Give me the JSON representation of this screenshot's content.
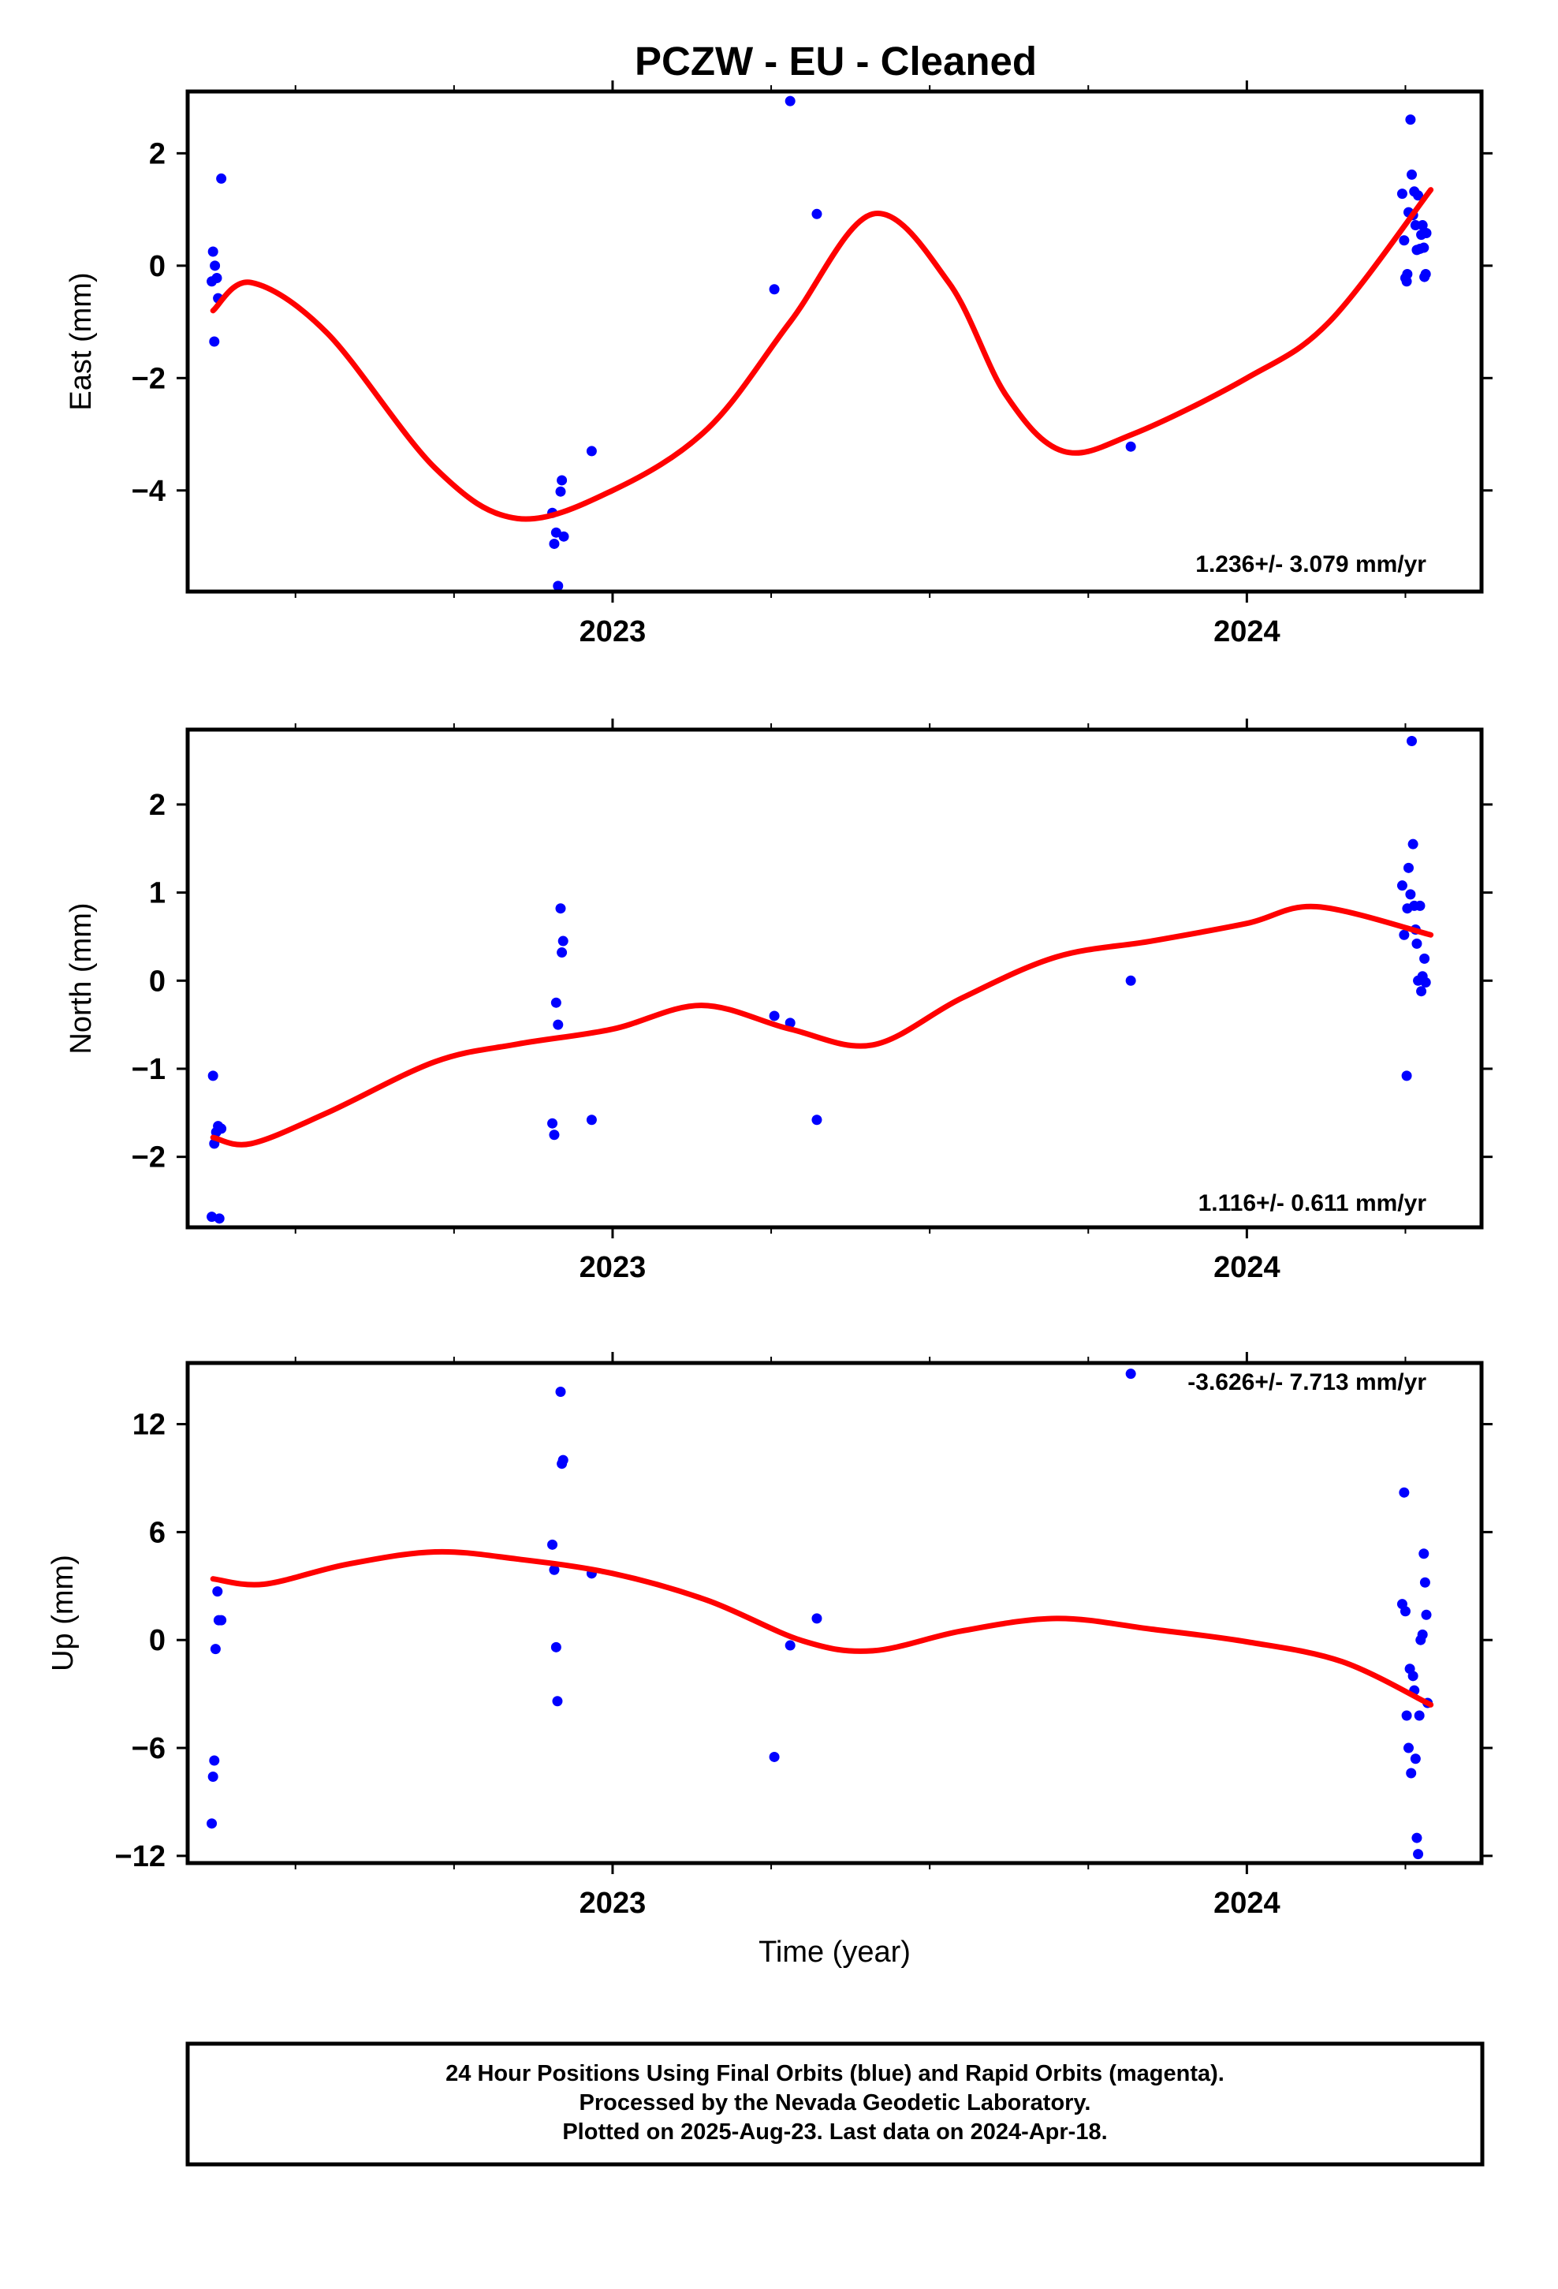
{
  "title": "PCZW  - EU - Cleaned",
  "colors": {
    "final_orbits": "#0000ff",
    "model_fit": "#ff0000",
    "axes": "#000000"
  },
  "chart_data": [
    {
      "type": "scatter",
      "panel": "east",
      "ylabel": "East (mm)",
      "xlabel": "",
      "xlim": [
        2022.33,
        2024.37
      ],
      "ylim": [
        -5.8,
        3.1
      ],
      "xticks": [
        2023,
        2024
      ],
      "yticks": [
        2,
        0,
        -2,
        -4
      ],
      "ytick_labels": [
        "2",
        "0",
        "−2",
        "−4"
      ],
      "rate_text": "1.236+/- 3.079 mm/yr",
      "series": [
        {
          "points": [
            [
              2022.37,
              0.25
            ],
            [
              2022.373,
              0.0
            ],
            [
              2022.376,
              -0.22
            ],
            [
              2022.368,
              -0.28
            ],
            [
              2022.378,
              -0.58
            ],
            [
              2022.372,
              -1.35
            ],
            [
              2022.383,
              1.55
            ],
            [
              2022.905,
              -4.4
            ],
            [
              2022.908,
              -4.95
            ],
            [
              2022.911,
              -4.75
            ],
            [
              2022.914,
              -5.7
            ],
            [
              2022.918,
              -4.02
            ],
            [
              2022.92,
              -3.82
            ],
            [
              2022.923,
              -4.82
            ],
            [
              2022.967,
              -3.3
            ],
            [
              2023.255,
              -0.42
            ],
            [
              2023.28,
              2.93
            ],
            [
              2023.322,
              0.92
            ],
            [
              2023.817,
              -3.22
            ],
            [
              2024.245,
              1.28
            ],
            [
              2024.248,
              0.45
            ],
            [
              2024.25,
              -0.22
            ],
            [
              2024.252,
              -0.28
            ],
            [
              2024.253,
              -0.15
            ],
            [
              2024.255,
              0.95
            ],
            [
              2024.258,
              2.6
            ],
            [
              2024.26,
              1.62
            ],
            [
              2024.262,
              0.9
            ],
            [
              2024.264,
              1.32
            ],
            [
              2024.266,
              0.72
            ],
            [
              2024.268,
              0.28
            ],
            [
              2024.27,
              1.25
            ],
            [
              2024.273,
              0.3
            ],
            [
              2024.275,
              0.55
            ],
            [
              2024.277,
              0.72
            ],
            [
              2024.28,
              -0.2
            ],
            [
              2024.282,
              -0.15
            ],
            [
              2024.283,
              0.58
            ],
            [
              2024.279,
              0.32
            ]
          ]
        }
      ],
      "fit_curve": [
        [
          2022.37,
          -0.8
        ],
        [
          2022.43,
          -0.3
        ],
        [
          2022.55,
          -1.2
        ],
        [
          2022.72,
          -3.6
        ],
        [
          2022.85,
          -4.5
        ],
        [
          2023.0,
          -4.0
        ],
        [
          2023.15,
          -2.9
        ],
        [
          2023.28,
          -1.0
        ],
        [
          2023.41,
          0.92
        ],
        [
          2023.53,
          -0.3
        ],
        [
          2023.62,
          -2.3
        ],
        [
          2023.71,
          -3.3
        ],
        [
          2023.82,
          -3.0
        ],
        [
          2024.0,
          -2.0
        ],
        [
          2024.13,
          -1.0
        ],
        [
          2024.29,
          1.35
        ]
      ]
    },
    {
      "type": "scatter",
      "panel": "north",
      "ylabel": "North (mm)",
      "xlabel": "",
      "xlim": [
        2022.33,
        2024.37
      ],
      "ylim": [
        -2.8,
        2.85
      ],
      "xticks": [
        2023,
        2024
      ],
      "yticks": [
        2,
        1,
        0,
        -1,
        -2
      ],
      "ytick_labels": [
        "2",
        "1",
        "0",
        "−1",
        "−2"
      ],
      "rate_text": "1.116+/- 0.611 mm/yr",
      "series": [
        {
          "points": [
            [
              2022.37,
              -1.08
            ],
            [
              2022.372,
              -1.85
            ],
            [
              2022.375,
              -1.72
            ],
            [
              2022.378,
              -1.65
            ],
            [
              2022.383,
              -1.68
            ],
            [
              2022.368,
              -2.68
            ],
            [
              2022.38,
              -2.7
            ],
            [
              2022.905,
              -1.62
            ],
            [
              2022.908,
              -1.75
            ],
            [
              2022.911,
              -0.25
            ],
            [
              2022.914,
              -0.5
            ],
            [
              2022.918,
              0.82
            ],
            [
              2022.92,
              0.32
            ],
            [
              2022.922,
              0.45
            ],
            [
              2022.967,
              -1.58
            ],
            [
              2023.255,
              -0.4
            ],
            [
              2023.28,
              -0.48
            ],
            [
              2023.322,
              -1.58
            ],
            [
              2023.817,
              0.0
            ],
            [
              2024.245,
              1.08
            ],
            [
              2024.248,
              0.52
            ],
            [
              2024.252,
              -1.08
            ],
            [
              2024.253,
              0.82
            ],
            [
              2024.255,
              1.28
            ],
            [
              2024.258,
              0.98
            ],
            [
              2024.26,
              2.72
            ],
            [
              2024.262,
              1.55
            ],
            [
              2024.264,
              0.85
            ],
            [
              2024.266,
              0.58
            ],
            [
              2024.268,
              0.42
            ],
            [
              2024.27,
              0.0
            ],
            [
              2024.273,
              0.85
            ],
            [
              2024.275,
              -0.12
            ],
            [
              2024.277,
              0.05
            ],
            [
              2024.28,
              0.25
            ],
            [
              2024.282,
              -0.02
            ]
          ]
        }
      ],
      "fit_curve": [
        [
          2022.37,
          -1.78
        ],
        [
          2022.43,
          -1.85
        ],
        [
          2022.55,
          -1.5
        ],
        [
          2022.72,
          -0.92
        ],
        [
          2022.85,
          -0.72
        ],
        [
          2023.0,
          -0.55
        ],
        [
          2023.14,
          -0.28
        ],
        [
          2023.28,
          -0.55
        ],
        [
          2023.41,
          -0.73
        ],
        [
          2023.55,
          -0.2
        ],
        [
          2023.7,
          0.27
        ],
        [
          2023.85,
          0.45
        ],
        [
          2024.0,
          0.65
        ],
        [
          2024.11,
          0.84
        ],
        [
          2024.29,
          0.52
        ]
      ]
    },
    {
      "type": "scatter",
      "panel": "up",
      "ylabel": "Up (mm)",
      "xlabel": "Time (year)",
      "xlim": [
        2022.33,
        2024.37
      ],
      "ylim": [
        -12.4,
        15.4
      ],
      "xticks": [
        2023,
        2024
      ],
      "yticks": [
        12,
        6,
        0,
        -6,
        -12
      ],
      "ytick_labels": [
        "12",
        "6",
        "0",
        "−6",
        "−12"
      ],
      "rate_text": "-3.626+/- 7.713 mm/yr",
      "series": [
        {
          "points": [
            [
              2022.368,
              -10.2
            ],
            [
              2022.37,
              -7.6
            ],
            [
              2022.372,
              -6.7
            ],
            [
              2022.374,
              -0.5
            ],
            [
              2022.377,
              2.7
            ],
            [
              2022.379,
              1.1
            ],
            [
              2022.383,
              1.1
            ],
            [
              2022.905,
              5.3
            ],
            [
              2022.908,
              3.9
            ],
            [
              2022.911,
              -0.4
            ],
            [
              2022.913,
              -3.4
            ],
            [
              2022.918,
              13.8
            ],
            [
              2022.92,
              9.8
            ],
            [
              2022.922,
              10.0
            ],
            [
              2022.967,
              3.7
            ],
            [
              2023.255,
              -6.5
            ],
            [
              2023.28,
              -0.3
            ],
            [
              2023.322,
              1.2
            ],
            [
              2023.817,
              14.8
            ],
            [
              2024.245,
              2.0
            ],
            [
              2024.248,
              8.2
            ],
            [
              2024.25,
              1.6
            ],
            [
              2024.252,
              -4.2
            ],
            [
              2024.255,
              -6.0
            ],
            [
              2024.257,
              -1.6
            ],
            [
              2024.259,
              -7.4
            ],
            [
              2024.262,
              -2.0
            ],
            [
              2024.264,
              -2.8
            ],
            [
              2024.266,
              -6.6
            ],
            [
              2024.268,
              -11.0
            ],
            [
              2024.27,
              -11.9
            ],
            [
              2024.272,
              -4.2
            ],
            [
              2024.274,
              0.0
            ],
            [
              2024.277,
              0.3
            ],
            [
              2024.279,
              4.8
            ],
            [
              2024.281,
              3.2
            ],
            [
              2024.283,
              1.4
            ],
            [
              2024.285,
              -3.5
            ]
          ]
        }
      ],
      "fit_curve": [
        [
          2022.37,
          3.4
        ],
        [
          2022.45,
          3.1
        ],
        [
          2022.58,
          4.2
        ],
        [
          2022.72,
          4.9
        ],
        [
          2022.85,
          4.5
        ],
        [
          2023.0,
          3.7
        ],
        [
          2023.15,
          2.2
        ],
        [
          2023.3,
          -0.05
        ],
        [
          2023.41,
          -0.6
        ],
        [
          2023.55,
          0.5
        ],
        [
          2023.7,
          1.2
        ],
        [
          2023.85,
          0.6
        ],
        [
          2024.0,
          -0.1
        ],
        [
          2024.15,
          -1.2
        ],
        [
          2024.29,
          -3.6
        ]
      ]
    }
  ],
  "footer": {
    "line1": "24 Hour Positions Using Final Orbits (blue) and Rapid Orbits (magenta).",
    "line2": "Processed by the Nevada Geodetic Laboratory.",
    "line3": "Plotted on 2025-Aug-23. Last data on 2024-Apr-18."
  }
}
